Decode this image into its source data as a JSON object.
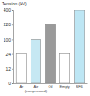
{
  "chart_data": {
    "type": "bar",
    "y_label": "Tension (kV)",
    "categories": [
      "Air",
      "Air (compressed)",
      "Oil",
      "Empty",
      "SF6"
    ],
    "values": [
      24,
      100,
      220,
      24,
      400
    ],
    "colors": [
      "#ffffff",
      "#c6e8f3",
      "#9a9a9a",
      "#ffffff",
      "#bde6f4"
    ],
    "ylim": [
      0,
      400
    ],
    "yticks": [
      0,
      12,
      24,
      100,
      220,
      400
    ],
    "grid": false
  }
}
